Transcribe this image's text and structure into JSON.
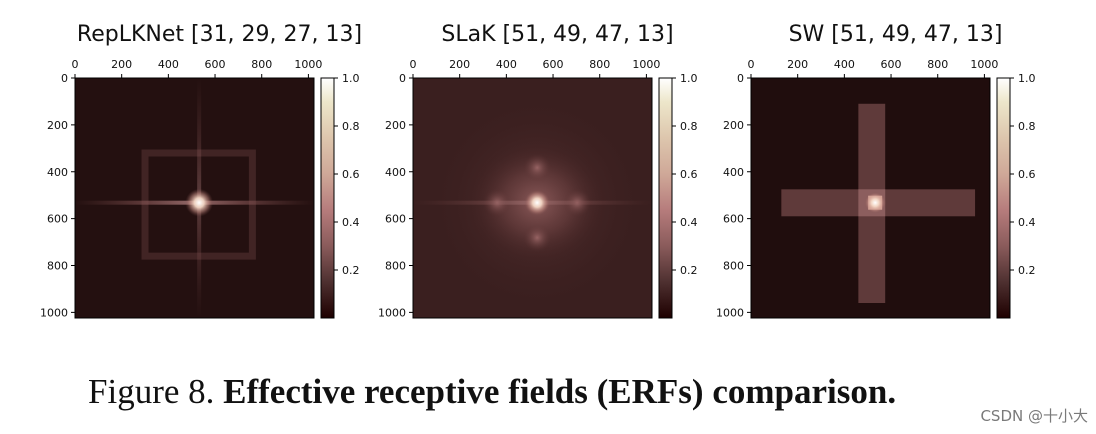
{
  "chart_data": [
    {
      "type": "heatmap",
      "title": "RepLKNet [31, 29, 27, 13]",
      "x_ticks": [
        0,
        200,
        400,
        600,
        800,
        1000
      ],
      "y_ticks": [
        0,
        200,
        400,
        600,
        800,
        1000
      ],
      "xlim": [
        0,
        1024
      ],
      "ylim": [
        0,
        1024
      ],
      "colorbar_ticks": [
        1.0,
        0.8,
        0.6,
        0.4,
        0.2
      ],
      "colorbar_range": [
        0,
        1.0
      ],
      "colormap": "pink",
      "pattern": "square",
      "center": [
        532,
        532
      ],
      "peak_value": 1.0
    },
    {
      "type": "heatmap",
      "title": "SLaK [51, 49, 47, 13]",
      "x_ticks": [
        0,
        200,
        400,
        600,
        800,
        1000
      ],
      "y_ticks": [
        0,
        200,
        400,
        600,
        800,
        1000
      ],
      "xlim": [
        0,
        1024
      ],
      "ylim": [
        0,
        1024
      ],
      "colorbar_ticks": [
        1.0,
        0.8,
        0.6,
        0.4,
        0.2
      ],
      "colorbar_range": [
        0,
        1.0
      ],
      "colormap": "pink",
      "pattern": "diffuse",
      "center": [
        532,
        532
      ],
      "peak_value": 1.0
    },
    {
      "type": "heatmap",
      "title": "SW [51, 49, 47, 13]",
      "x_ticks": [
        0,
        200,
        400,
        600,
        800,
        1000
      ],
      "y_ticks": [
        0,
        200,
        400,
        600,
        800,
        1000
      ],
      "xlim": [
        0,
        1024
      ],
      "ylim": [
        0,
        1024
      ],
      "colorbar_ticks": [
        1.0,
        0.8,
        0.6,
        0.4,
        0.2
      ],
      "colorbar_range": [
        0,
        1.0
      ],
      "colormap": "pink",
      "pattern": "cross",
      "center": [
        532,
        532
      ],
      "peak_value": 1.0
    }
  ],
  "caption": {
    "prefix": "Figure 8. ",
    "bold": "Effective receptive fields (ERFs) comparison."
  },
  "watermark": "CSDN @十小大"
}
